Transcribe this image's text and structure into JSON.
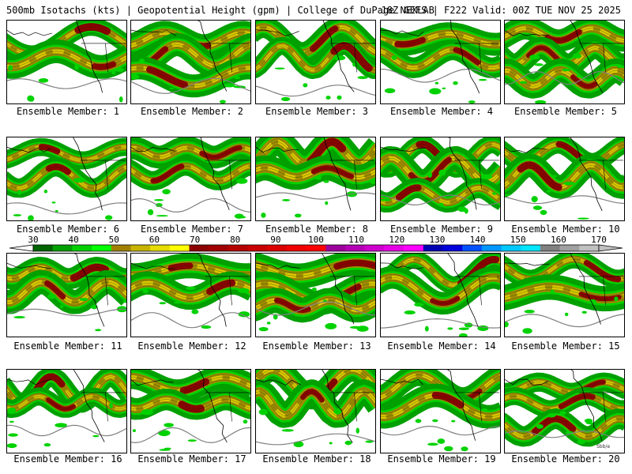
{
  "header": {
    "left": "500mb Isotachs (kts) | Geopotential Height (gpm) | College of DuPage NEXLAB",
    "right": "18Z GEFS | F222 Valid: 00Z TUE NOV 25 2025"
  },
  "panel_label_prefix": "Ensemble Member: ",
  "panels": [
    {
      "member": "1"
    },
    {
      "member": "2"
    },
    {
      "member": "3"
    },
    {
      "member": "4"
    },
    {
      "member": "5"
    },
    {
      "member": "6"
    },
    {
      "member": "7"
    },
    {
      "member": "8"
    },
    {
      "member": "9"
    },
    {
      "member": "10"
    },
    {
      "member": "11"
    },
    {
      "member": "12"
    },
    {
      "member": "13"
    },
    {
      "member": "14"
    },
    {
      "member": "15"
    },
    {
      "member": "16"
    },
    {
      "member": "17"
    },
    {
      "member": "18"
    },
    {
      "member": "19"
    },
    {
      "member": "20"
    }
  ],
  "colorbar": {
    "ticks": [
      "30",
      "40",
      "50",
      "60",
      "70",
      "80",
      "90",
      "100",
      "110",
      "120",
      "130",
      "140",
      "150",
      "160",
      "170"
    ],
    "colors": [
      "#006400",
      "#00a000",
      "#00d000",
      "#00ff00",
      "#a08000",
      "#c8b400",
      "#e6dc00",
      "#ffff00",
      "#8b0000",
      "#a00000",
      "#b40000",
      "#c80000",
      "#dc0000",
      "#f00000",
      "#ff0000",
      "#9b009b",
      "#b400b4",
      "#cd00cd",
      "#e600e6",
      "#ff00ff",
      "#0000b4",
      "#0000dc",
      "#0050ff",
      "#0096ff",
      "#00c8ff",
      "#00e6ff",
      "#808080",
      "#a0a0a0",
      "#c0c0c0"
    ]
  },
  "map_colors": {
    "green": "#00a000",
    "bright_green": "#00d200",
    "olive": "#a08c00",
    "yellow": "#dcc800",
    "maroon": "#8b0000",
    "outline": "#000000",
    "height_contour": "#808080"
  },
  "watermark": "Sbb/e"
}
